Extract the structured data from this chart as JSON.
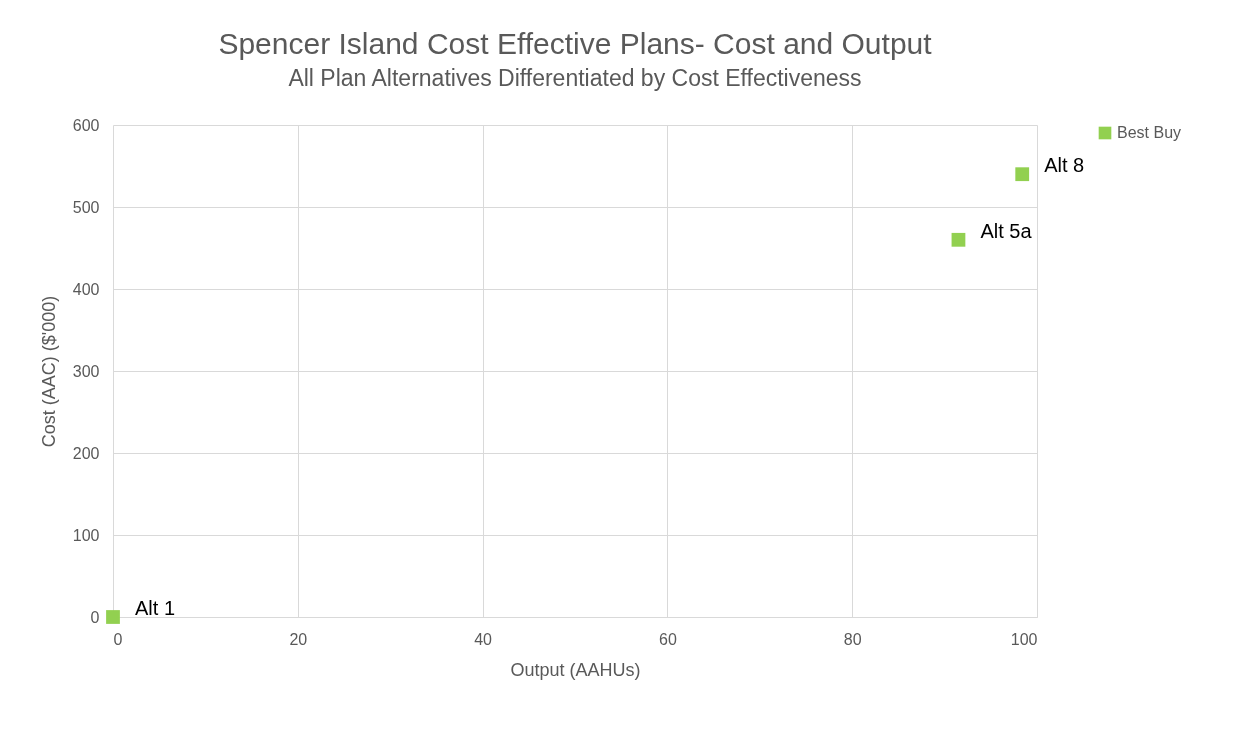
{
  "chart_data": {
    "type": "scatter",
    "title": "Spencer Island Cost Effective Plans- Cost and Output",
    "subtitle": "All Plan Alternatives Differentiated by Cost Effectiveness",
    "xlabel": "Output (AAHUs)",
    "ylabel": "Cost  (AAC) ($'000)",
    "x": [
      0,
      91.5,
      98.4
    ],
    "series": [
      {
        "name": "Best Buy",
        "color": "#92d050",
        "values": [
          0,
          460,
          540
        ]
      }
    ],
    "annotations": [
      {
        "text": "Alt 1",
        "x": 0,
        "y": 0
      },
      {
        "text": "Alt 5a",
        "x": 91.5,
        "y": 460
      },
      {
        "text": "Alt 8",
        "x": 98.4,
        "y": 540
      }
    ],
    "xlim": [
      0,
      100
    ],
    "xticks": [
      0,
      20,
      40,
      60,
      80,
      100
    ],
    "ylim": [
      0,
      600
    ],
    "yticks": [
      0,
      100,
      200,
      300,
      400,
      500,
      600
    ],
    "grid": true,
    "legend": "right",
    "marker": "square"
  }
}
